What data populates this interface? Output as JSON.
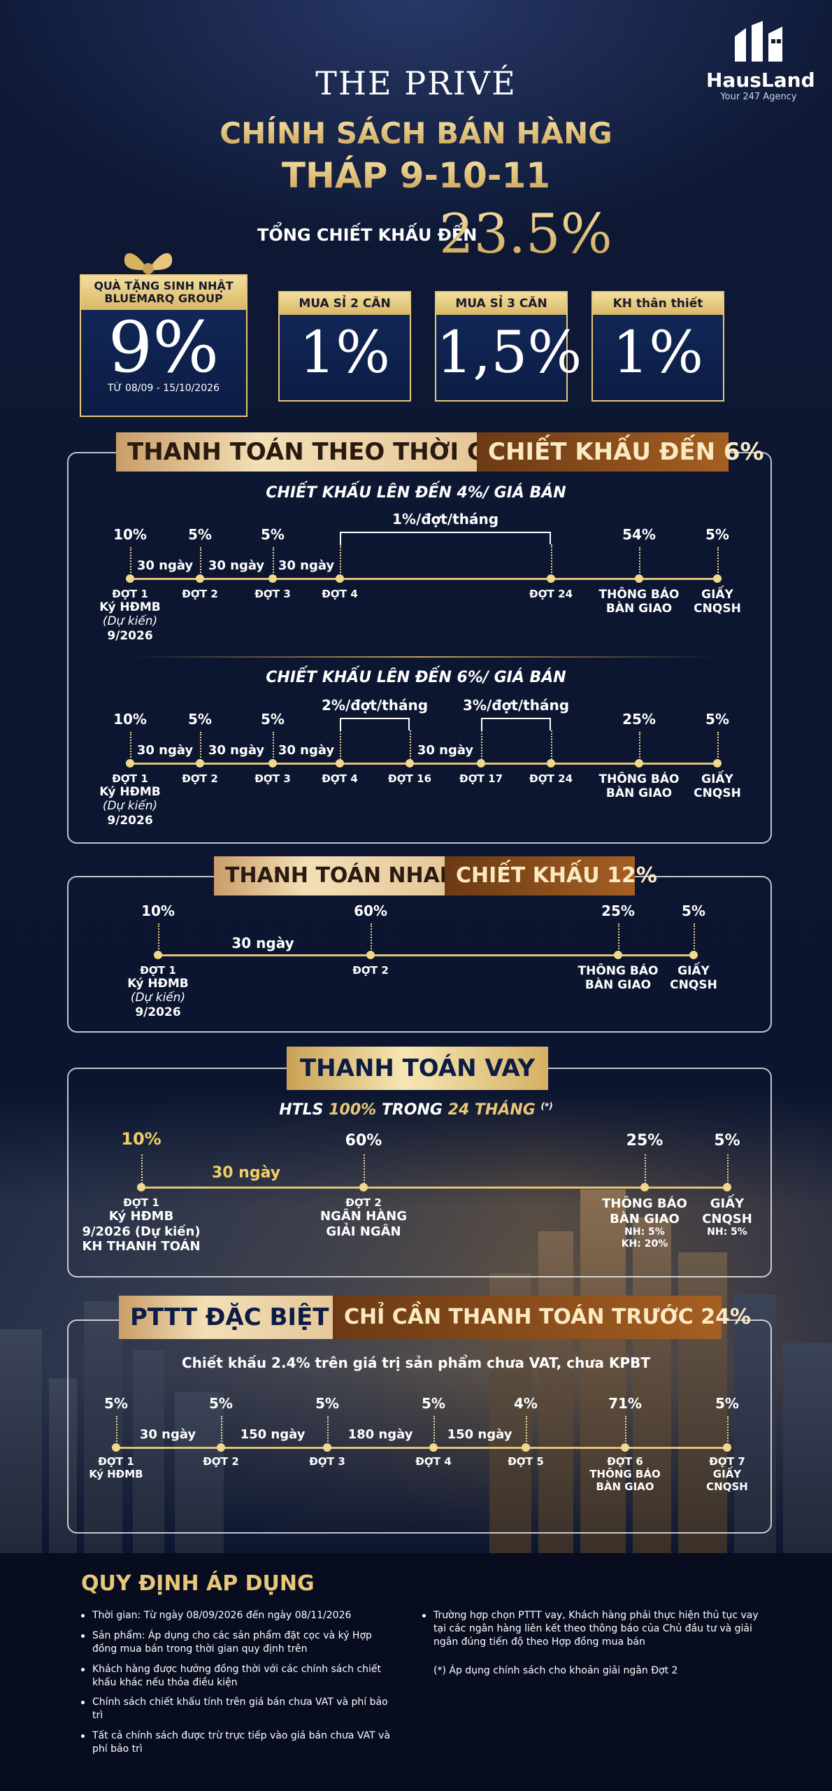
{
  "header": {
    "brand": "THE PRIVÉ",
    "title_line1": "CHÍNH SÁCH BÁN HÀNG",
    "title_line2": "THÁP 9-10-11",
    "total_discount_label": "TỔNG CHIẾT KHẤU ĐẾN",
    "total_discount_value": "23.5%"
  },
  "logo": {
    "name": "HausLand",
    "tagline": "Your 247 Agency"
  },
  "discounts": [
    {
      "label": "QUÀ TẶNG SINH NHẬT BLUEMARQ GROUP",
      "value": "9%",
      "note": "TỪ 08/09 - 15/10/2026"
    },
    {
      "label": "MUA SỈ 2 CĂN",
      "value": "1%"
    },
    {
      "label": "MUA SỈ 3 CĂN",
      "value": "1,5%"
    },
    {
      "label": "KH thân thiết",
      "value": "1%"
    }
  ],
  "sec1": {
    "tag_a": "THANH TOÁN THEO THỜI GIAN",
    "tag_b": "CHIẾT KHẤU ĐẾN 6%",
    "plan1": {
      "subtitle": "CHIẾT KHẤU LÊN ĐẾN 4%/ GIÁ BÁN",
      "percents": [
        "10%",
        "5%",
        "5%",
        "54%",
        "5%"
      ],
      "gaps": [
        "30 ngày",
        "30 ngày",
        "30 ngày"
      ],
      "bracket": "1%/đợt/tháng",
      "stages": [
        "ĐỢT 1",
        "ĐỢT 2",
        "ĐỢT 3",
        "ĐỢT 4",
        "ĐỢT 24",
        "THÔNG BÁO",
        "GIẤY"
      ],
      "stages2": [
        "Ký HĐMB",
        "BÀN GIAO",
        "CNQSH"
      ],
      "expected": "(Dự kiến)",
      "date": "9/2026"
    },
    "plan2": {
      "subtitle": "CHIẾT KHẤU LÊN ĐẾN 6%/ GIÁ BÁN",
      "percents": [
        "10%",
        "5%",
        "5%",
        "25%",
        "5%"
      ],
      "gaps": [
        "30 ngày",
        "30 ngày",
        "30 ngày",
        "30 ngày"
      ],
      "bracket1": "2%/đợt/tháng",
      "bracket2": "3%/đợt/tháng",
      "stages": [
        "ĐỢT 1",
        "ĐỢT 2",
        "ĐỢT 3",
        "ĐỢT 4",
        "ĐỢT 16",
        "ĐỢT 17",
        "ĐỢT 24",
        "THÔNG BÁO",
        "GIẤY"
      ],
      "stages2": [
        "Ký HĐMB",
        "BÀN GIAO",
        "CNQSH"
      ],
      "expected": "(Dự kiến)",
      "date": "9/2026"
    }
  },
  "sec2": {
    "tag_a": "THANH TOÁN NHANH",
    "tag_b": "CHIẾT KHẤU 12%",
    "percents": [
      "10%",
      "60%",
      "25%",
      "5%"
    ],
    "gap": "30 ngày",
    "stages": [
      "ĐỢT 1",
      "ĐỢT 2",
      "THÔNG BÁO",
      "GIẤY"
    ],
    "stages2": [
      "Ký HĐMB",
      "BÀN GIAO",
      "CNQSH"
    ],
    "expected": "(Dự kiến)",
    "date": "9/2026"
  },
  "sec3": {
    "tag": "THANH TOÁN VAY",
    "subtitle_a": "HTLS",
    "subtitle_b": "100%",
    "subtitle_c": "TRONG",
    "subtitle_d": "24 THÁNG",
    "subtitle_e": "(*)",
    "percents": [
      "10%",
      "60%",
      "25%",
      "5%"
    ],
    "gap": "30 ngày",
    "stages": [
      "ĐỢT 1",
      "ĐỢT 2",
      "THÔNG BÁO",
      "GIẤY"
    ],
    "stage1_lines": [
      "Ký HĐMB",
      "9/2026 (Dự kiến)",
      "KH THANH TOÁN"
    ],
    "stage2_lines": [
      "NGÂN HÀNG",
      "GIẢI NGÂN"
    ],
    "stage3_lines": [
      "BÀN GIAO",
      "NH: 5%",
      "KH: 20%"
    ],
    "stage4_lines": [
      "CNQSH",
      "NH: 5%"
    ]
  },
  "sec4": {
    "tag_a": "PTTT ĐẶC BIỆT",
    "tag_b": "CHỈ CẦN THANH TOÁN TRƯỚC 24%",
    "subtitle": "Chiết khấu 2.4% trên giá trị sản phẩm chưa VAT, chưa KPBT",
    "percents": [
      "5%",
      "5%",
      "5%",
      "5%",
      "4%",
      "71%",
      "5%"
    ],
    "gaps": [
      "30 ngày",
      "150 ngày",
      "180 ngày",
      "150 ngày"
    ],
    "stages": [
      "ĐỢT 1",
      "ĐỢT 2",
      "ĐỢT 3",
      "ĐỢT 4",
      "ĐỢT 5",
      "ĐỢT 6",
      "ĐỢT 7"
    ],
    "stages2": [
      "Ký HĐMB",
      "THÔNG BÁO",
      "BÀN GIAO",
      "GIẤY",
      "CNQSH"
    ]
  },
  "rules": {
    "title": "QUY ĐỊNH ÁP DỤNG",
    "left": [
      "Thời gian: Từ ngày 08/09/2026 đến ngày 08/11/2026",
      "Sản phẩm: Áp dụng cho các sản phẩm đặt cọc và ký Hợp đồng mua bán trong thời gian quy định trên",
      "Khách hàng được hưởng đồng thời với các chính sách chiết khấu khác nếu thỏa điều kiện",
      "Chính sách chiết khấu tính trên giá bán chưa VAT và phí bảo trì",
      "Tất cả chính sách được trừ trực tiếp vào giá bán chưa VAT và phí bảo trì"
    ],
    "right": [
      "Trường hợp chọn PTTT vay, Khách hàng phải thực hiện thủ tục vay tại các ngân hàng liên kết theo thông báo của Chủ đầu tư và giải ngân đúng tiến độ theo Hợp đồng mua bán"
    ],
    "footnote": "(*) Áp dụng chính sách cho khoản giải ngân Đợt 2"
  }
}
